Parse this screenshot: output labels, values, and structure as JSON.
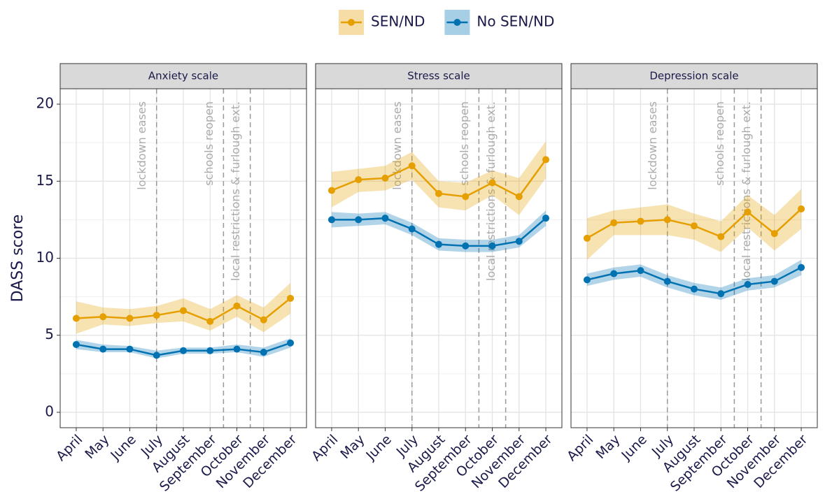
{
  "chart_data": [
    {
      "type": "line",
      "title": "Anxiety scale",
      "ylabel": "DASS score",
      "categories": [
        "April",
        "May",
        "June",
        "July",
        "August",
        "September",
        "October",
        "November",
        "December"
      ],
      "series": [
        {
          "name": "SEN/ND",
          "color": "#E69F00",
          "values": [
            6.1,
            6.2,
            6.1,
            6.3,
            6.6,
            5.9,
            6.9,
            6.0,
            7.4
          ],
          "lower": [
            5.1,
            5.7,
            5.6,
            5.8,
            5.9,
            5.3,
            6.2,
            5.2,
            6.4
          ],
          "upper": [
            7.2,
            6.8,
            6.7,
            6.9,
            7.4,
            6.7,
            7.6,
            6.8,
            8.4
          ]
        },
        {
          "name": "No SEN/ND",
          "color": "#0072B2",
          "values": [
            4.4,
            4.1,
            4.1,
            3.7,
            4.0,
            4.0,
            4.1,
            3.9,
            4.5
          ],
          "lower": [
            4.1,
            3.9,
            3.9,
            3.5,
            3.8,
            3.8,
            3.9,
            3.6,
            4.2
          ],
          "upper": [
            4.7,
            4.4,
            4.3,
            4.0,
            4.2,
            4.2,
            4.4,
            4.2,
            4.8
          ]
        }
      ],
      "annotations": [
        {
          "label": "lockdown eases",
          "x": 3
        },
        {
          "label": "schools reopen",
          "x": 5.5
        },
        {
          "label": "local restrictions & furlough ext.",
          "x": 6.5
        }
      ],
      "ylim": [
        -1,
        21
      ],
      "yticks": [
        0,
        5,
        10,
        15,
        20
      ],
      "grid": true
    },
    {
      "type": "line",
      "title": "Stress scale",
      "categories": [
        "April",
        "May",
        "June",
        "July",
        "August",
        "September",
        "October",
        "November",
        "December"
      ],
      "series": [
        {
          "name": "SEN/ND",
          "color": "#E69F00",
          "values": [
            14.4,
            15.1,
            15.2,
            16.0,
            14.2,
            14.0,
            14.9,
            14.0,
            16.4
          ],
          "lower": [
            13.3,
            14.3,
            14.4,
            15.1,
            13.3,
            13.1,
            14.1,
            12.8,
            15.2
          ],
          "upper": [
            15.6,
            15.8,
            16.0,
            16.9,
            15.0,
            14.9,
            15.7,
            15.2,
            17.6
          ]
        },
        {
          "name": "No SEN/ND",
          "color": "#0072B2",
          "values": [
            12.5,
            12.5,
            12.6,
            11.9,
            10.9,
            10.8,
            10.8,
            11.1,
            12.6
          ],
          "lower": [
            12.0,
            12.1,
            12.2,
            11.5,
            10.5,
            10.4,
            10.4,
            10.7,
            12.1
          ],
          "upper": [
            13.0,
            12.9,
            13.0,
            12.3,
            11.3,
            11.2,
            11.2,
            11.5,
            13.1
          ]
        }
      ],
      "annotations": [
        {
          "label": "lockdown eases",
          "x": 3
        },
        {
          "label": "schools reopen",
          "x": 5.5
        },
        {
          "label": "local restrictions & furlough ext.",
          "x": 6.5
        }
      ],
      "ylim": [
        -1,
        21
      ],
      "yticks": [
        0,
        5,
        10,
        15,
        20
      ],
      "grid": true
    },
    {
      "type": "line",
      "title": "Depression scale",
      "categories": [
        "April",
        "May",
        "June",
        "July",
        "August",
        "September",
        "October",
        "November",
        "December"
      ],
      "series": [
        {
          "name": "SEN/ND",
          "color": "#E69F00",
          "values": [
            11.3,
            12.3,
            12.4,
            12.5,
            12.1,
            11.4,
            13.0,
            11.6,
            13.2
          ],
          "lower": [
            9.9,
            11.5,
            11.5,
            11.5,
            11.2,
            10.4,
            12.0,
            10.5,
            11.9
          ],
          "upper": [
            12.6,
            13.1,
            13.3,
            13.5,
            12.9,
            12.4,
            14.1,
            12.8,
            14.5
          ]
        },
        {
          "name": "No SEN/ND",
          "color": "#0072B2",
          "values": [
            8.6,
            9.0,
            9.2,
            8.5,
            8.0,
            7.7,
            8.3,
            8.5,
            9.4
          ],
          "lower": [
            8.2,
            8.6,
            8.8,
            8.1,
            7.6,
            7.3,
            7.9,
            8.1,
            8.9
          ],
          "upper": [
            9.0,
            9.4,
            9.6,
            8.9,
            8.4,
            8.1,
            8.7,
            8.9,
            9.9
          ]
        }
      ],
      "annotations": [
        {
          "label": "lockdown eases",
          "x": 3
        },
        {
          "label": "schools reopen",
          "x": 5.5
        },
        {
          "label": "local restrictions & furlough ext.",
          "x": 6.5
        }
      ],
      "ylim": [
        -1,
        21
      ],
      "yticks": [
        0,
        5,
        10,
        15,
        20
      ],
      "grid": true
    }
  ]
}
